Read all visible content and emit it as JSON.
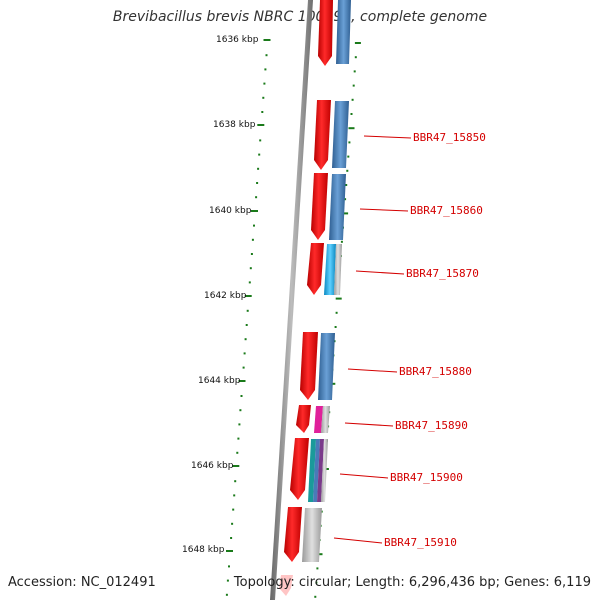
{
  "title": "Brevibacillus brevis NBRC 100599, complete genome",
  "accession": "Accession: NC_012491",
  "topology": "Topology: circular; Length: 6,296,436 bp; Genes: 6,119",
  "ticks": [
    {
      "label": "1636 kbp"
    },
    {
      "label": "1638 kbp"
    },
    {
      "label": "1640 kbp"
    },
    {
      "label": "1642 kbp"
    },
    {
      "label": "1644 kbp"
    },
    {
      "label": "1646 kbp"
    },
    {
      "label": "1648 kbp"
    }
  ],
  "genes": [
    {
      "label": "BBR47_15850"
    },
    {
      "label": "BBR47_15860"
    },
    {
      "label": "BBR47_15870"
    },
    {
      "label": "BBR47_15880"
    },
    {
      "label": "BBR47_15890"
    },
    {
      "label": "BBR47_15900"
    },
    {
      "label": "BBR47_15910"
    }
  ],
  "colors": {
    "gene_arrow": "#ee0000",
    "tick": "#1a7a1a",
    "label": "#d40000",
    "backbone": "#888888",
    "bar_blue": "#4a86c0",
    "bar_cyan": "#1ab0e8",
    "bar_magenta": "#e0209a",
    "bar_teal": "#1a9a9a",
    "bar_gray": "#bbbbbb"
  }
}
